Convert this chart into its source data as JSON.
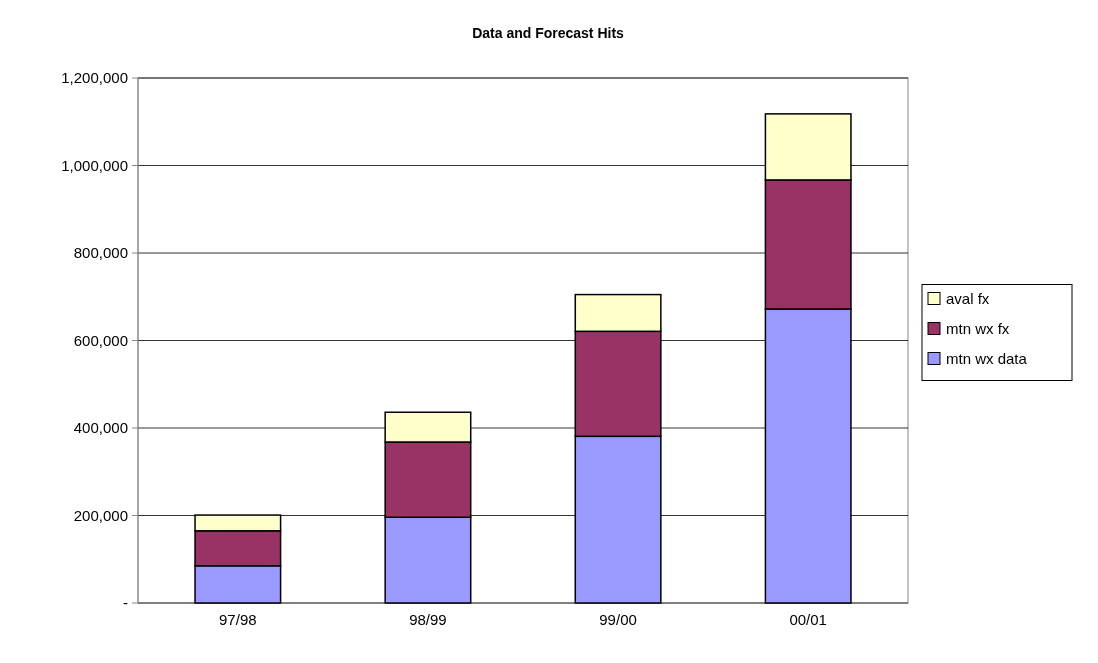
{
  "chart_data": {
    "type": "bar",
    "title": "Data and Forecast Hits",
    "stacked": true,
    "categories": [
      "97/98",
      "98/99",
      "99/00",
      "00/01"
    ],
    "series": [
      {
        "name": "mtn wx data",
        "color": "#9999ff",
        "values": [
          85000,
          196000,
          381000,
          672000
        ]
      },
      {
        "name": "mtn wx fx",
        "color": "#993366",
        "values": [
          80000,
          172000,
          240000,
          295000
        ]
      },
      {
        "name": "aval fx",
        "color": "#ffffcc",
        "values": [
          36000,
          68000,
          84000,
          151000
        ]
      }
    ],
    "ylim": [
      0,
      1200000
    ],
    "yticks": [
      {
        "value": 0,
        "label": "-"
      },
      {
        "value": 200000,
        "label": "200,000"
      },
      {
        "value": 400000,
        "label": "400,000"
      },
      {
        "value": 600000,
        "label": "600,000"
      },
      {
        "value": 800000,
        "label": "800,000"
      },
      {
        "value": 1000000,
        "label": "1,000,000"
      },
      {
        "value": 1200000,
        "label": "1,200,000"
      }
    ],
    "grid": "y",
    "legend": "right"
  }
}
